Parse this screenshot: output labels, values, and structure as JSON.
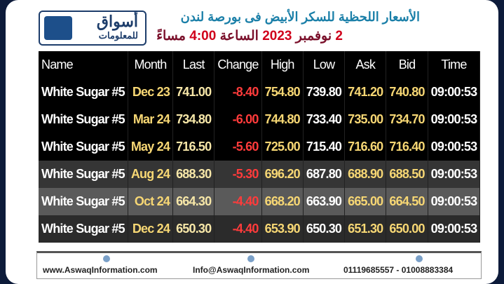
{
  "header": {
    "logo": {
      "name": "أسواق",
      "sub": "للمعلومات"
    },
    "title": "الأسعار اللحظية للسكر الأبيض فى بورصة لندن",
    "date_parts": [
      "2",
      "نوفمبر",
      "2023",
      "الساعة",
      "4:00",
      "مساءً"
    ]
  },
  "table": {
    "columns": [
      "Name",
      "Month",
      "Last",
      "Change",
      "High",
      "Low",
      "Ask",
      "Bid",
      "Time"
    ],
    "rows": [
      [
        "White Sugar #5",
        "Dec 23",
        "741.00",
        "-8.40",
        "754.80",
        "739.80",
        "741.20",
        "740.80",
        "09:00:53"
      ],
      [
        "White Sugar #5",
        "Mar 24",
        "734.80",
        "-6.00",
        "744.80",
        "733.40",
        "735.00",
        "734.70",
        "09:00:53"
      ],
      [
        "White Sugar #5",
        "May 24",
        "716.50",
        "-5.60",
        "725.00",
        "715.40",
        "716.60",
        "716.40",
        "09:00:53"
      ],
      [
        "White Sugar #5",
        "Aug 24",
        "688.30",
        "-5.30",
        "696.20",
        "687.80",
        "688.90",
        "688.50",
        "09:00:53"
      ],
      [
        "White Sugar #5",
        "Oct 24",
        "664.30",
        "-4.40",
        "668.20",
        "663.90",
        "665.00",
        "664.50",
        "09:00:53"
      ],
      [
        "White Sugar #5",
        "Dec 24",
        "650.30",
        "-4.40",
        "653.90",
        "650.30",
        "651.30",
        "650.00",
        "09:00:53"
      ]
    ]
  },
  "footer": {
    "website": "www.AswaqInformation.com",
    "email": "Info@AswaqInformation.com",
    "phones": "01119685557 - 01008883384"
  }
}
